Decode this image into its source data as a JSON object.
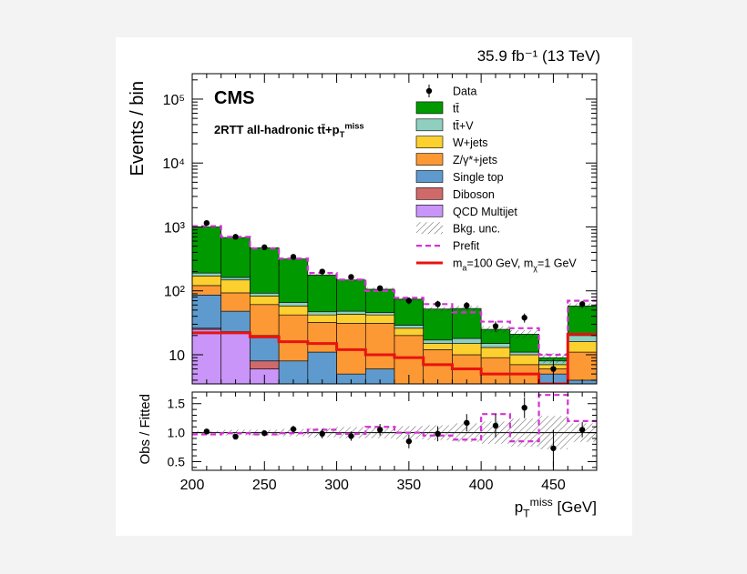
{
  "chart_data": {
    "type": "bar",
    "stacked": true,
    "lumi_label": "35.9 fb⁻¹ (13 TeV)",
    "experiment_label": "CMS",
    "region_label": "2RTT all-hadronic tt̄+p_T^miss",
    "top_panel": {
      "ylabel": "Events / bin",
      "yscale": "log",
      "ylim": [
        3.5,
        250000
      ],
      "ytick_labels": [
        "10",
        "10²",
        "10³",
        "10⁴",
        "10⁵"
      ]
    },
    "ratio_panel": {
      "ylabel": "Obs / Fitted",
      "ylim": [
        0.35,
        1.7
      ],
      "ytick_labels": [
        "0.5",
        "1.0",
        "1.5"
      ]
    },
    "x": {
      "label": "p_T^miss [GeV]",
      "lim": [
        200,
        480
      ],
      "tick_labels": [
        "200",
        "250",
        "300",
        "350",
        "400",
        "450"
      ],
      "bin_edges": [
        200,
        220,
        240,
        260,
        280,
        300,
        320,
        340,
        360,
        380,
        400,
        420,
        440,
        460,
        480
      ]
    },
    "legend": {
      "position": "top-right",
      "entries": [
        {
          "name": "Data",
          "style": "marker",
          "color": "#000000"
        },
        {
          "name": "tt̄",
          "style": "fill",
          "color": "#009900"
        },
        {
          "name": "tt̄+V",
          "style": "fill",
          "color": "#8ecfc0"
        },
        {
          "name": "W+jets",
          "style": "fill",
          "color": "#fcd02f"
        },
        {
          "name": "Z/γ*+jets",
          "style": "fill",
          "color": "#fc9935"
        },
        {
          "name": "Single top",
          "style": "fill",
          "color": "#5e9acd"
        },
        {
          "name": "Diboson",
          "style": "fill",
          "color": "#d06a6a"
        },
        {
          "name": "QCD Multijet",
          "style": "fill",
          "color": "#c995f8"
        },
        {
          "name": "Bkg. unc.",
          "style": "hatch",
          "color": "#555555"
        },
        {
          "name": "Prefit",
          "style": "dashed-line",
          "color": "#d531d5"
        },
        {
          "name": "m_a=100 GeV, m_χ=1 GeV",
          "style": "line",
          "color": "#e8130f"
        }
      ]
    },
    "series": [
      {
        "name": "QCD Multijet",
        "color": "#c995f8",
        "values": [
          25,
          22,
          6,
          1,
          1,
          1,
          1,
          1,
          1,
          1,
          1,
          1,
          1,
          1
        ]
      },
      {
        "name": "Diboson",
        "color": "#d06a6a",
        "values": [
          1,
          1,
          2,
          1,
          1,
          1,
          1,
          1,
          1,
          1,
          1,
          1,
          1,
          1
        ]
      },
      {
        "name": "Single top",
        "color": "#5e9acd",
        "values": [
          60,
          25,
          12,
          6,
          9,
          3,
          4,
          1,
          1,
          1,
          1,
          1,
          3,
          2
        ]
      },
      {
        "name": "Z/γ*+jets",
        "color": "#fc9935",
        "values": [
          35,
          45,
          41,
          34,
          21,
          26,
          25,
          17,
          9,
          7,
          6,
          4,
          1,
          7
        ]
      },
      {
        "name": "W+jets",
        "color": "#fcd02f",
        "values": [
          50,
          55,
          22,
          16,
          10,
          12,
          11,
          6,
          3,
          5,
          4,
          3,
          1,
          5
        ]
      },
      {
        "name": "tt̄+V",
        "color": "#8ecfc0",
        "values": [
          19,
          14,
          9,
          8,
          5,
          5,
          4,
          3,
          2,
          3,
          2,
          1,
          1,
          4
        ]
      },
      {
        "name": "tt̄",
        "color": "#009900",
        "values": [
          810,
          520,
          380,
          250,
          130,
          100,
          60,
          45,
          35,
          35,
          10,
          10,
          1,
          38
        ]
      }
    ],
    "data": {
      "name": "Data",
      "x": [
        210,
        230,
        250,
        270,
        290,
        310,
        330,
        350,
        370,
        390,
        410,
        430,
        450,
        470
      ],
      "y": [
        1150,
        700,
        480,
        340,
        200,
        165,
        110,
        70,
        62,
        59,
        28,
        38,
        6,
        62
      ]
    },
    "prefit": {
      "name": "Prefit",
      "values": [
        1030,
        700,
        460,
        320,
        190,
        150,
        100,
        78,
        62,
        46,
        33,
        26,
        10,
        70
      ]
    },
    "signal": {
      "name": "m_a=100 GeV, m_χ=1 GeV",
      "values": [
        22,
        22,
        19,
        16,
        15,
        12,
        10,
        9,
        7,
        6,
        5,
        5,
        3.5,
        21
      ]
    },
    "ratio": {
      "x": [
        210,
        230,
        250,
        270,
        290,
        310,
        330,
        350,
        370,
        390,
        410,
        430,
        450,
        470
      ],
      "y": [
        1.02,
        0.93,
        0.99,
        1.06,
        0.98,
        0.94,
        1.05,
        0.85,
        0.98,
        1.17,
        1.12,
        1.43,
        0.73,
        1.05
      ],
      "yerr": [
        0.03,
        0.04,
        0.05,
        0.06,
        0.08,
        0.08,
        0.1,
        0.12,
        0.13,
        0.15,
        0.2,
        0.18,
        0.32,
        0.13
      ],
      "prefit": [
        0.97,
        0.99,
        0.97,
        0.99,
        1.05,
        0.98,
        1.1,
        1.0,
        0.95,
        0.88,
        1.32,
        0.85,
        1.65,
        1.2
      ],
      "unc": [
        0.02,
        0.03,
        0.03,
        0.04,
        0.05,
        0.06,
        0.06,
        0.07,
        0.08,
        0.1,
        0.12,
        0.15,
        0.18,
        0.1
      ]
    }
  }
}
